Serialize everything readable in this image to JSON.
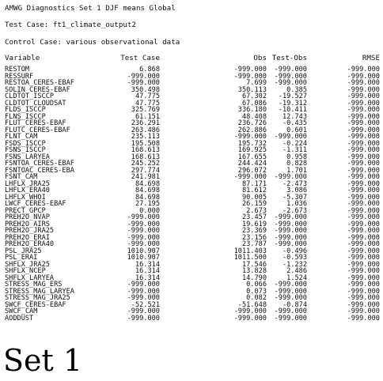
{
  "header": {
    "title": "AMWG Diagnostics Set 1 DJF means Global",
    "test_case": "Test Case: ft1_climate_output2",
    "control_case": "Control Case: various observational data"
  },
  "table": {
    "columns": [
      "Variable",
      "Test Case",
      "Obs",
      "Test-Obs",
      "RMSE"
    ],
    "rows": [
      [
        "RESTOM",
        "6.868",
        "-999.000",
        "-999.000",
        "-999.000"
      ],
      [
        "RESSURF",
        "-999.000",
        "-999.000",
        "-999.000",
        "-999.000"
      ],
      [
        "RESTOA_CERES-EBAF",
        "-999.000",
        "7.699",
        "-999.000",
        "-999.000"
      ],
      [
        "SOLIN_CERES-EBAF",
        "350.498",
        "350.113",
        "0.385",
        "-999.000"
      ],
      [
        "CLDTOT_ISCCP",
        "47.775",
        "67.302",
        "-19.527",
        "-999.000"
      ],
      [
        "CLDTOT_CLOUDSAT",
        "47.775",
        "67.086",
        "-19.312",
        "-999.000"
      ],
      [
        "FLDS_ISCCP",
        "325.769",
        "336.180",
        "-10.411",
        "-999.000"
      ],
      [
        "FLNS_ISCCP",
        "61.151",
        "48.408",
        "12.743",
        "-999.000"
      ],
      [
        "FLUT_CERES-EBAF",
        "236.291",
        "236.726",
        "-0.435",
        "-999.000"
      ],
      [
        "FLUTC_CERES-EBAF",
        "263.486",
        "262.886",
        "0.601",
        "-999.000"
      ],
      [
        "FLNT_CAM",
        "235.113",
        "-999.000",
        "-999.000",
        "-999.000"
      ],
      [
        "FSDS_ISCCP",
        "195.508",
        "195.732",
        "-0.224",
        "-999.000"
      ],
      [
        "FSNS_ISCCP",
        "168.613",
        "169.925",
        "-1.311",
        "-999.000"
      ],
      [
        "FSNS_LARYEA",
        "168.613",
        "167.655",
        "0.958",
        "-999.000"
      ],
      [
        "FSNTOA_CERES-EBAF",
        "245.252",
        "244.424",
        "0.828",
        "-999.000"
      ],
      [
        "FSNTOAC_CERES-EBA",
        "297.774",
        "296.072",
        "1.701",
        "-999.000"
      ],
      [
        "FSNT_CAM",
        "241.981",
        "-999.000",
        "-999.000",
        "-999.000"
      ],
      [
        "LHFLX_JRA25",
        "84.698",
        "87.171",
        "-2.473",
        "-999.000"
      ],
      [
        "LHFLX_ERA40",
        "84.698",
        "81.612",
        "3.086",
        "-999.000"
      ],
      [
        "LHFLX_WHOI",
        "84.698",
        "90.005",
        "-5.307",
        "-999.000"
      ],
      [
        "LWCF_CERES-EBAF",
        "27.195",
        "26.159",
        "1.036",
        "-999.000"
      ],
      [
        "PRECT_GPCP",
        "0.000",
        "2.673",
        "-2.673",
        "-999.000"
      ],
      [
        "PREH2O_NVAP",
        "-999.000",
        "23.457",
        "-999.000",
        "-999.000"
      ],
      [
        "PREH2O_AIRS",
        "-999.000",
        "19.619",
        "-999.000",
        "-999.000"
      ],
      [
        "PREH2O_JRA25",
        "-999.000",
        "23.369",
        "-999.000",
        "-999.000"
      ],
      [
        "PREH2O_ERAI",
        "-999.000",
        "23.156",
        "-999.000",
        "-999.000"
      ],
      [
        "PREH2O_ERA40",
        "-999.000",
        "23.787",
        "-999.000",
        "-999.000"
      ],
      [
        "PSL_JRA25",
        "1010.907",
        "1011.403",
        "-0.496",
        "-999.000"
      ],
      [
        "PSL_ERAI",
        "1010.907",
        "1011.500",
        "-0.593",
        "-999.000"
      ],
      [
        "SHFLX_JRA25",
        "16.314",
        "17.546",
        "-1.232",
        "-999.000"
      ],
      [
        "SHFLX_NCEP",
        "16.314",
        "13.828",
        "2.486",
        "-999.000"
      ],
      [
        "SHFLX_LARYEA",
        "16.314",
        "14.790",
        "1.524",
        "-999.000"
      ],
      [
        "STRESS_MAG_ERS",
        "-999.000",
        "0.066",
        "-999.000",
        "-999.000"
      ],
      [
        "STRESS_MAG_LARYEA",
        "-999.000",
        "0.073",
        "-999.000",
        "-999.000"
      ],
      [
        "STRESS_MAG_JRA25",
        "-999.000",
        "0.082",
        "-999.000",
        "-999.000"
      ],
      [
        "SWCF_CERES-EBAF",
        "-52.521",
        "-51.648",
        "-0.874",
        "-999.000"
      ],
      [
        "SWCF_CAM",
        "-999.000",
        "-999.000",
        "-999.000",
        "-999.000"
      ],
      [
        "AODDUST",
        "-999.000",
        "-999.000",
        "-999.000",
        "-999.000"
      ]
    ]
  },
  "overlay": {
    "label": "Set 1"
  }
}
